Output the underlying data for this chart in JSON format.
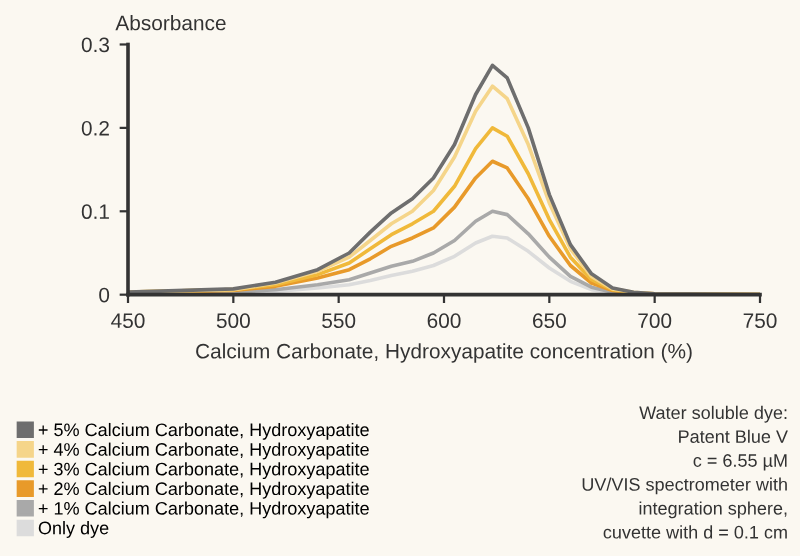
{
  "chart_data": {
    "type": "line",
    "ylabel": "Absorbance",
    "xlabel": "Calcium Carbonate, Hydroxyapatite concentration (%)",
    "x": [
      450,
      500,
      520,
      540,
      555,
      565,
      575,
      585,
      595,
      605,
      615,
      623,
      630,
      640,
      650,
      660,
      670,
      680,
      690,
      700,
      750
    ],
    "series": [
      {
        "name": "+ 5% Calcium Carbonate, Hydroxyapatite",
        "color": "#6e6e6e",
        "values": [
          0.003,
          0.007,
          0.015,
          0.03,
          0.05,
          0.075,
          0.098,
          0.115,
          0.14,
          0.18,
          0.24,
          0.275,
          0.26,
          0.2,
          0.12,
          0.06,
          0.025,
          0.008,
          0.003,
          0.001,
          0
        ]
      },
      {
        "name": "+ 4% Calcium Carbonate, Hydroxyapatite",
        "color": "#f5d58a",
        "values": [
          0.003,
          0.006,
          0.014,
          0.028,
          0.045,
          0.065,
          0.085,
          0.1,
          0.125,
          0.165,
          0.22,
          0.25,
          0.235,
          0.18,
          0.11,
          0.055,
          0.022,
          0.007,
          0.003,
          0.001,
          0
        ]
      },
      {
        "name": "+ 3% Calcium Carbonate, Hydroxyapatite",
        "color": "#f0b93a",
        "values": [
          0.003,
          0.006,
          0.012,
          0.024,
          0.038,
          0.055,
          0.072,
          0.085,
          0.1,
          0.13,
          0.175,
          0.2,
          0.19,
          0.145,
          0.09,
          0.045,
          0.018,
          0.006,
          0.002,
          0.001,
          0
        ]
      },
      {
        "name": "+ 2% Calcium Carbonate, Hydroxyapatite",
        "color": "#e89a2a",
        "values": [
          0.002,
          0.005,
          0.01,
          0.02,
          0.03,
          0.043,
          0.058,
          0.068,
          0.08,
          0.105,
          0.14,
          0.16,
          0.152,
          0.115,
          0.07,
          0.035,
          0.014,
          0.005,
          0.002,
          0.001,
          0
        ]
      },
      {
        "name": "+ 1% Calcium Carbonate, Hydroxyapatite",
        "color": "#a9a9a9",
        "values": [
          0.001,
          0.003,
          0.006,
          0.012,
          0.018,
          0.026,
          0.034,
          0.04,
          0.05,
          0.065,
          0.088,
          0.1,
          0.096,
          0.073,
          0.045,
          0.022,
          0.009,
          0.003,
          0.001,
          0,
          0
        ]
      },
      {
        "name": "Only dye",
        "color": "#dcdcdc",
        "values": [
          0.001,
          0.002,
          0.004,
          0.008,
          0.012,
          0.017,
          0.023,
          0.028,
          0.035,
          0.046,
          0.062,
          0.07,
          0.068,
          0.052,
          0.032,
          0.016,
          0.006,
          0.002,
          0.001,
          0,
          0
        ]
      }
    ],
    "xlim": [
      450,
      750
    ],
    "xticks": [
      450,
      500,
      550,
      600,
      650,
      700,
      750
    ],
    "ylim": [
      0,
      0.3
    ],
    "yticks": [
      0,
      0.1,
      0.2,
      0.3
    ],
    "grid": false,
    "legend": "bottom left",
    "marker": "none",
    "line_style": "solid",
    "annotations": [
      "Water soluble dye:",
      "Patent Blue V",
      "c = 6.55 µM",
      "UV/VIS spectrometer with",
      "integration sphere,",
      "cuvette with d = 0.1 cm"
    ]
  }
}
